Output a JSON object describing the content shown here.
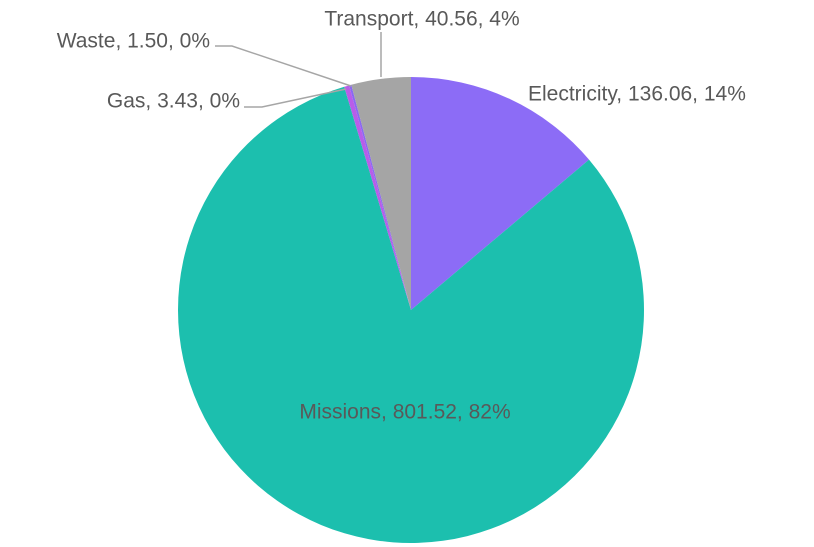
{
  "chart_data": {
    "type": "pie",
    "categories": [
      "Electricity",
      "Missions",
      "Gas",
      "Waste",
      "Transport"
    ],
    "values": [
      136.06,
      801.52,
      3.43,
      1.5,
      40.56
    ],
    "value_labels": [
      "Electricity, 136.06, 14%",
      "Missions, 801.52, 82%",
      "Gas, 3.43, 0%",
      "Waste, 1.50, 0%",
      "Transport, 40.56, 4%"
    ],
    "colors": [
      "#8c6cf6",
      "#1cbfae",
      "#b85de9",
      "#8a68f0",
      "#a5a5a5"
    ]
  }
}
